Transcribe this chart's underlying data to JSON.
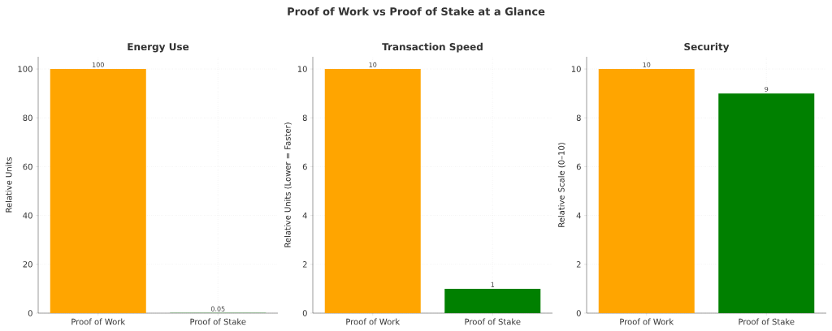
{
  "chart_data": [
    {
      "type": "bar",
      "title": "Energy Use",
      "ylabel": "Relative Units",
      "categories": [
        "Proof of Work",
        "Proof of Stake"
      ],
      "values": [
        100,
        0.05
      ],
      "colors": [
        "#ffa500",
        "#008000"
      ],
      "ylim": [
        0,
        105
      ],
      "yticks": [
        0,
        20,
        40,
        60,
        80,
        100
      ],
      "grid": true,
      "data_labels": true,
      "annotations": [
        "Proof of Work vs Proof of Stake at a Glance"
      ]
    },
    {
      "type": "bar",
      "title": "Transaction Speed",
      "ylabel": "Relative Units (Lower = Faster)",
      "categories": [
        "Proof of Work",
        "Proof of Stake"
      ],
      "values": [
        10,
        1
      ],
      "colors": [
        "#ffa500",
        "#008000"
      ],
      "ylim": [
        0,
        10.5
      ],
      "yticks": [
        0,
        2,
        4,
        6,
        8,
        10
      ],
      "grid": true,
      "data_labels": true
    },
    {
      "type": "bar",
      "title": "Security",
      "ylabel": "Relative Scale (0–10)",
      "categories": [
        "Proof of Work",
        "Proof of Stake"
      ],
      "values": [
        10,
        9
      ],
      "colors": [
        "#ffa500",
        "#008000"
      ],
      "ylim": [
        0,
        10.5
      ],
      "yticks": [
        0,
        2,
        4,
        6,
        8,
        10
      ],
      "grid": true,
      "data_labels": true
    }
  ]
}
